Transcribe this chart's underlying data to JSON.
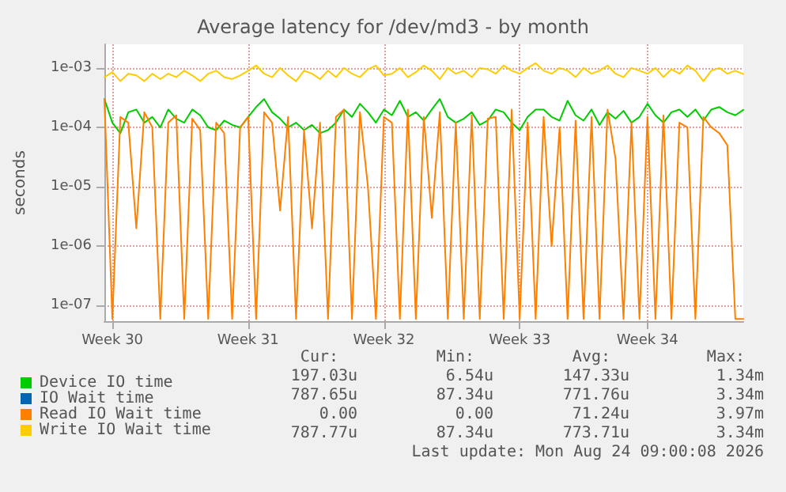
{
  "chart_data": {
    "type": "line",
    "title": "Average latency for /dev/md3 - by month",
    "ylabel": "seconds",
    "log": "y",
    "grid": true,
    "legend": "bottom",
    "marker": "none",
    "line_style": "solid",
    "categories": [
      null,
      "Week 30",
      null,
      null,
      null,
      null,
      null,
      null,
      null,
      null,
      null,
      null,
      null,
      null,
      null,
      null,
      null,
      null,
      "Week 31",
      null,
      null,
      null,
      null,
      null,
      null,
      null,
      null,
      null,
      null,
      null,
      null,
      null,
      null,
      null,
      null,
      "Week 32",
      null,
      null,
      null,
      null,
      null,
      null,
      null,
      null,
      null,
      null,
      null,
      null,
      null,
      null,
      null,
      null,
      "Week 33",
      null,
      null,
      null,
      null,
      null,
      null,
      null,
      null,
      null,
      null,
      null,
      null,
      null,
      null,
      null,
      "Week 34",
      null,
      null,
      null,
      null,
      null,
      null,
      null,
      null,
      null,
      null,
      null,
      null
    ],
    "ylim": [
      5.5e-08,
      0.0025
    ],
    "yticks": [
      {
        "value": 1e-07,
        "label": "1e-07"
      },
      {
        "value": 1e-06,
        "label": "1e-06"
      },
      {
        "value": 1e-05,
        "label": "1e-05"
      },
      {
        "value": 0.0001,
        "label": "1e-04"
      },
      {
        "value": 0.001,
        "label": "1e-03"
      }
    ],
    "series": [
      {
        "name": "Device IO time",
        "color": "#00cc00",
        "values": [
          0.0003,
          0.00012,
          8e-05,
          0.00018,
          0.0002,
          0.00012,
          0.00015,
          0.0001,
          0.0002,
          0.00014,
          0.00012,
          0.0002,
          0.00016,
          0.0001,
          9e-05,
          0.00013,
          0.00011,
          0.0001,
          0.00015,
          0.00022,
          0.0003,
          0.00018,
          0.00014,
          0.0001,
          0.00012,
          9e-05,
          0.00011,
          8e-05,
          9e-05,
          0.00012,
          0.0002,
          0.00015,
          0.00025,
          0.00018,
          0.00012,
          0.0002,
          0.00016,
          0.00028,
          0.00015,
          0.00018,
          0.00013,
          0.0002,
          0.0003,
          0.00015,
          0.00012,
          0.00014,
          0.00018,
          0.00011,
          0.00013,
          0.0002,
          0.00018,
          0.00012,
          9e-05,
          0.00015,
          0.0002,
          0.0002,
          0.00015,
          0.00013,
          0.00028,
          0.00016,
          0.00013,
          0.0002,
          0.00011,
          0.00018,
          0.00014,
          0.00019,
          0.00012,
          0.00015,
          0.00025,
          0.00016,
          0.00012,
          0.00018,
          0.0002,
          0.00015,
          0.0002,
          0.00013,
          0.0002,
          0.00022,
          0.00018,
          0.00016,
          0.000197
        ]
      },
      {
        "name": "IO Wait time",
        "color": "#0066b3",
        "values": [
          null,
          null,
          null,
          null,
          null,
          null,
          null,
          null,
          null,
          null,
          null,
          null,
          null,
          null,
          null,
          null,
          null,
          null,
          null,
          null,
          null,
          null,
          null,
          null,
          null,
          null,
          null,
          null,
          null,
          null,
          null,
          null,
          null,
          null,
          null,
          null,
          null,
          null,
          null,
          null,
          null,
          null,
          null,
          null,
          null,
          null,
          null,
          null,
          null,
          null,
          null,
          null,
          null,
          null,
          null,
          null,
          null,
          null,
          null,
          null,
          null,
          null,
          null,
          null,
          null,
          null,
          null,
          null,
          null,
          null,
          null,
          null,
          null,
          null,
          null,
          null,
          null,
          null,
          null,
          null,
          null
        ]
      },
      {
        "name": "Read IO Wait time",
        "color": "#ff8000",
        "values": [
          0.0003,
          6e-08,
          0.00015,
          0.00012,
          2e-06,
          0.00018,
          0.0001,
          6e-08,
          0.00012,
          0.00016,
          6e-08,
          0.00014,
          9e-05,
          6e-08,
          0.00012,
          8e-05,
          6e-08,
          0.0001,
          0.00015,
          6e-08,
          0.00018,
          0.00012,
          4e-06,
          0.00015,
          6e-08,
          9e-05,
          2e-06,
          0.00012,
          6e-08,
          0.00015,
          0.0002,
          6e-08,
          0.00018,
          1e-05,
          6e-08,
          0.00015,
          0.00012,
          6e-08,
          0.0002,
          6e-08,
          0.00015,
          3e-06,
          0.00018,
          6e-08,
          0.00012,
          6e-08,
          0.00016,
          6e-08,
          0.00014,
          0.00015,
          6e-08,
          0.0002,
          6e-08,
          0.00012,
          6e-08,
          0.00015,
          1e-06,
          0.0001,
          6e-08,
          0.00013,
          6e-08,
          0.00015,
          6e-08,
          0.0002,
          3e-05,
          6e-08,
          0.00012,
          6e-08,
          0.00015,
          6e-08,
          0.00016,
          6e-08,
          0.00012,
          0.0001,
          6e-08,
          0.00015,
          0.0001,
          8e-05,
          5e-05,
          6e-08,
          6e-08
        ]
      },
      {
        "name": "Write IO Wait time",
        "color": "#ffcc00",
        "values": [
          0.0007,
          0.00085,
          0.0006,
          0.0008,
          0.00075,
          0.0006,
          0.0008,
          0.00065,
          0.0008,
          0.0007,
          0.0009,
          0.00075,
          0.0006,
          0.0008,
          0.0009,
          0.0007,
          0.00065,
          0.00075,
          0.0009,
          0.0011,
          0.0008,
          0.0007,
          0.001,
          0.00075,
          0.0006,
          0.0009,
          0.0008,
          0.00065,
          0.0009,
          0.0007,
          0.001,
          0.0008,
          0.0007,
          0.00095,
          0.0011,
          0.00075,
          0.0008,
          0.001,
          0.0007,
          0.00085,
          0.0011,
          0.0009,
          0.00065,
          0.001,
          0.0008,
          0.0009,
          0.0007,
          0.001,
          0.00095,
          0.0008,
          0.0011,
          0.0009,
          0.0008,
          0.001,
          0.0012,
          0.0009,
          0.0008,
          0.001,
          0.0009,
          0.0007,
          0.001,
          0.0008,
          0.0009,
          0.0011,
          0.0008,
          0.0007,
          0.001,
          0.0009,
          0.0008,
          0.001,
          0.0007,
          0.00095,
          0.0008,
          0.0011,
          0.0009,
          0.0006,
          0.0009,
          0.001,
          0.0008,
          0.0009,
          0.00079
        ]
      }
    ],
    "annotations": [
      "Cur:",
      "Min:",
      "Avg:",
      "Max:",
      "197.03u",
      "6.54u",
      "147.33u",
      "1.34m",
      "787.65u",
      "87.34u",
      "771.76u",
      "3.34m",
      "0.00",
      "0.00",
      "71.24u",
      "3.97m",
      "787.77u",
      "87.34u",
      "773.71u",
      "3.34m",
      "Last update: Mon Aug 24 09:00:08 2026"
    ]
  }
}
